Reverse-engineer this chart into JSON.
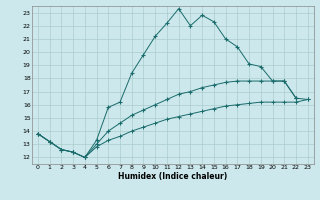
{
  "xlabel": "Humidex (Indice chaleur)",
  "background_color": "#cce8ec",
  "grid_color": "#aacccc",
  "line_color": "#1a6b6b",
  "xlim": [
    -0.5,
    23.5
  ],
  "ylim": [
    11.5,
    23.5
  ],
  "yticks": [
    12,
    13,
    14,
    15,
    16,
    17,
    18,
    19,
    20,
    21,
    22,
    23
  ],
  "xticks": [
    0,
    1,
    2,
    3,
    4,
    5,
    6,
    7,
    8,
    9,
    10,
    11,
    12,
    13,
    14,
    15,
    16,
    17,
    18,
    19,
    20,
    21,
    22,
    23
  ],
  "series1_x": [
    0,
    1,
    2,
    3,
    4,
    5,
    6,
    7,
    8,
    9,
    10,
    11,
    12,
    13,
    14,
    15,
    16,
    17,
    18,
    19,
    20,
    21,
    22
  ],
  "series1_y": [
    13.8,
    13.2,
    12.6,
    12.4,
    12.0,
    13.3,
    15.8,
    16.2,
    18.4,
    19.8,
    21.2,
    22.2,
    23.3,
    22.0,
    22.8,
    22.3,
    21.0,
    20.4,
    19.1,
    18.9,
    17.8,
    17.8,
    16.5
  ],
  "series2_x": [
    0,
    1,
    2,
    3,
    4,
    5,
    6,
    7,
    8,
    9,
    10,
    11,
    12,
    13,
    14,
    15,
    16,
    17,
    18,
    19,
    20,
    21,
    22,
    23
  ],
  "series2_y": [
    13.8,
    13.2,
    12.6,
    12.4,
    12.0,
    13.0,
    14.0,
    14.6,
    15.2,
    15.6,
    16.0,
    16.4,
    16.8,
    17.0,
    17.3,
    17.5,
    17.7,
    17.8,
    17.8,
    17.8,
    17.8,
    17.8,
    16.5,
    16.4
  ],
  "series3_x": [
    0,
    1,
    2,
    3,
    4,
    5,
    6,
    7,
    8,
    9,
    10,
    11,
    12,
    13,
    14,
    15,
    16,
    17,
    18,
    19,
    20,
    21,
    22,
    23
  ],
  "series3_y": [
    13.8,
    13.2,
    12.6,
    12.4,
    12.0,
    12.8,
    13.3,
    13.6,
    14.0,
    14.3,
    14.6,
    14.9,
    15.1,
    15.3,
    15.5,
    15.7,
    15.9,
    16.0,
    16.1,
    16.2,
    16.2,
    16.2,
    16.2,
    16.4
  ]
}
